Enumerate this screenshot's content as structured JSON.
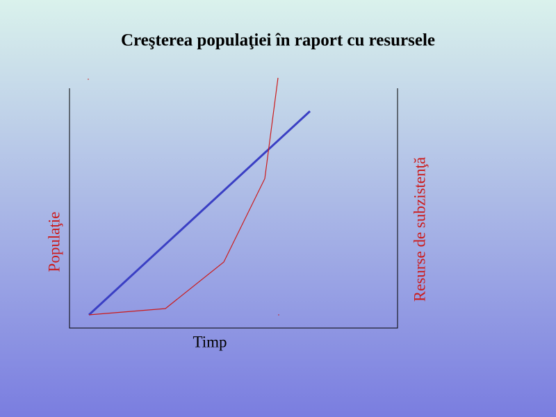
{
  "title": "Creşterea populaţiei în raport cu resursele",
  "x_label": "Timp",
  "left_label": "Populaţie",
  "right_label": "Resurse de subzistenţă"
}
